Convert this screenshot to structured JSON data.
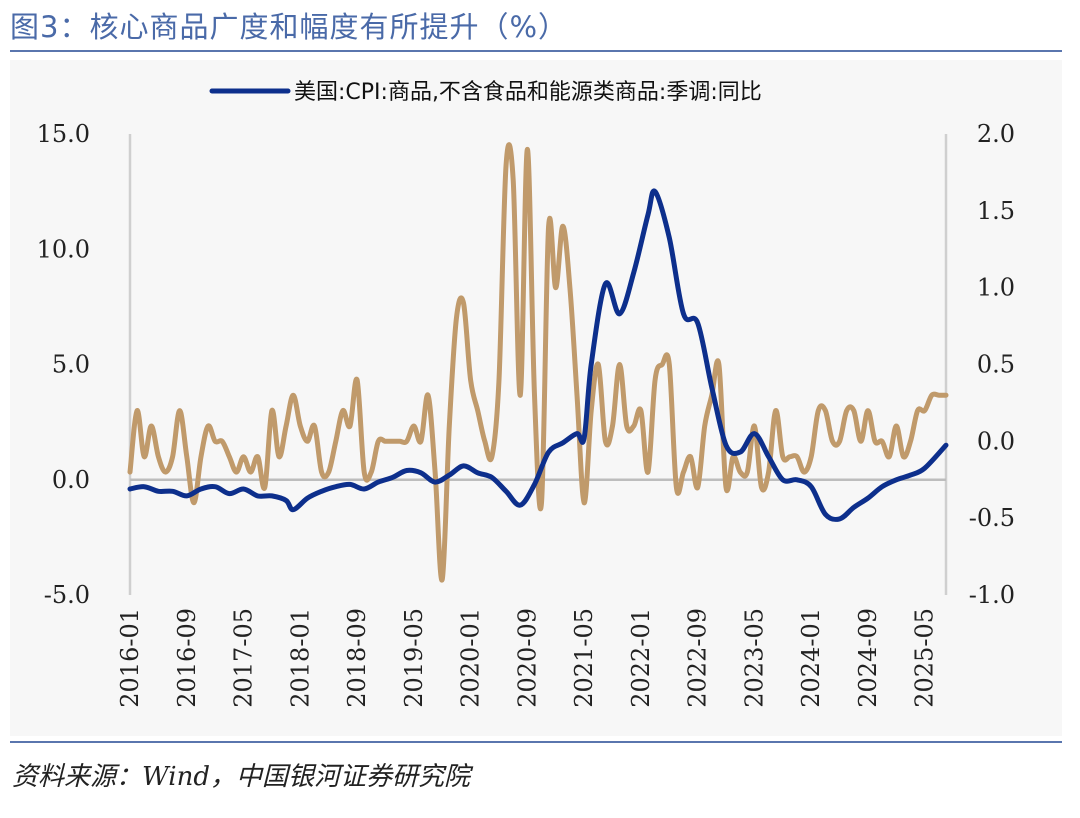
{
  "header": {
    "title": "图3：核心商品广度和幅度有所提升（%）"
  },
  "footer": {
    "source": "资料来源：Wind，中国银河证券研究院"
  },
  "colors": {
    "title": "#4a6aa8",
    "rule": "#5a76ae",
    "series_left": "#0d2f8c",
    "series_right": "#c09a6b",
    "zero_line": "#bdbdbd",
    "axis": "#cfcfcf"
  },
  "chart_data": {
    "type": "line",
    "title": "",
    "legend": {
      "placement": "top-center",
      "entries": [
        "美国:CPI:商品,不含食品和能源类商品:季调:同比"
      ]
    },
    "x_tick_labels": [
      "2016-01",
      "2016-09",
      "2017-05",
      "2018-01",
      "2018-09",
      "2019-05",
      "2020-01",
      "2020-09",
      "2021-05",
      "2022-01",
      "2022-09",
      "2023-05",
      "2024-01",
      "2024-09",
      "2025-05"
    ],
    "x_range": [
      "2016-01",
      "2025-08"
    ],
    "y_left": {
      "ylim": [
        -5.0,
        15.0
      ],
      "ticks": [
        "15.0",
        "10.0",
        "5.0",
        "0.0",
        "-5.0"
      ],
      "tick_values": [
        15,
        10,
        5,
        0,
        -5
      ]
    },
    "y_right": {
      "ylim": [
        -1.0,
        2.0
      ],
      "ticks": [
        "2.0",
        "1.5",
        "1.0",
        "0.5",
        "0.0",
        "-0.5",
        "-1.0"
      ],
      "tick_values": [
        2.0,
        1.5,
        1.0,
        0.5,
        0.0,
        -0.5,
        -1.0
      ]
    },
    "grid": false,
    "series": [
      {
        "name": "美国:CPI:商品,不含食品和能源类商品:季调:同比",
        "axis": "left",
        "color": "#0d2f8c",
        "points": [
          [
            "2016-01",
            -0.4
          ],
          [
            "2016-03",
            -0.3
          ],
          [
            "2016-05",
            -0.5
          ],
          [
            "2016-07",
            -0.5
          ],
          [
            "2016-09",
            -0.7
          ],
          [
            "2016-11",
            -0.4
          ],
          [
            "2017-01",
            -0.3
          ],
          [
            "2017-03",
            -0.6
          ],
          [
            "2017-05",
            -0.4
          ],
          [
            "2017-07",
            -0.7
          ],
          [
            "2017-09",
            -0.7
          ],
          [
            "2017-11",
            -0.9
          ],
          [
            "2017-12",
            -1.3
          ],
          [
            "2018-02",
            -0.8
          ],
          [
            "2018-04",
            -0.5
          ],
          [
            "2018-06",
            -0.3
          ],
          [
            "2018-08",
            -0.2
          ],
          [
            "2018-10",
            -0.4
          ],
          [
            "2018-12",
            -0.1
          ],
          [
            "2019-02",
            0.1
          ],
          [
            "2019-04",
            0.4
          ],
          [
            "2019-06",
            0.3
          ],
          [
            "2019-08",
            -0.1
          ],
          [
            "2019-10",
            0.2
          ],
          [
            "2019-12",
            0.6
          ],
          [
            "2020-02",
            0.3
          ],
          [
            "2020-04",
            0.1
          ],
          [
            "2020-06",
            -0.5
          ],
          [
            "2020-08",
            -1.1
          ],
          [
            "2020-10",
            -0.2
          ],
          [
            "2020-12",
            1.2
          ],
          [
            "2021-02",
            1.6
          ],
          [
            "2021-04",
            2.0
          ],
          [
            "2021-05",
            1.8
          ],
          [
            "2021-06",
            5.0
          ],
          [
            "2021-08",
            8.5
          ],
          [
            "2021-10",
            7.2
          ],
          [
            "2021-12",
            9.0
          ],
          [
            "2022-02",
            11.5
          ],
          [
            "2022-03",
            12.5
          ],
          [
            "2022-05",
            10.5
          ],
          [
            "2022-07",
            7.2
          ],
          [
            "2022-09",
            6.8
          ],
          [
            "2022-11",
            4.0
          ],
          [
            "2023-01",
            1.5
          ],
          [
            "2023-03",
            1.2
          ],
          [
            "2023-05",
            2.0
          ],
          [
            "2023-07",
            1.0
          ],
          [
            "2023-09",
            0.0
          ],
          [
            "2023-11",
            0.0
          ],
          [
            "2024-01",
            -0.3
          ],
          [
            "2024-03",
            -1.5
          ],
          [
            "2024-05",
            -1.7
          ],
          [
            "2024-07",
            -1.2
          ],
          [
            "2024-09",
            -0.8
          ],
          [
            "2024-11",
            -0.3
          ],
          [
            "2025-01",
            0.0
          ],
          [
            "2025-03",
            0.2
          ],
          [
            "2025-05",
            0.5
          ],
          [
            "2025-08",
            1.5
          ]
        ]
      },
      {
        "name": "",
        "axis": "right",
        "color": "#c09a6b",
        "points": [
          [
            "2016-01",
            -0.2
          ],
          [
            "2016-02",
            0.2
          ],
          [
            "2016-03",
            -0.1
          ],
          [
            "2016-04",
            0.1
          ],
          [
            "2016-05",
            -0.1
          ],
          [
            "2016-06",
            -0.2
          ],
          [
            "2016-07",
            -0.1
          ],
          [
            "2016-08",
            0.2
          ],
          [
            "2016-09",
            -0.1
          ],
          [
            "2016-10",
            -0.4
          ],
          [
            "2016-11",
            -0.1
          ],
          [
            "2016-12",
            0.1
          ],
          [
            "2017-01",
            0.0
          ],
          [
            "2017-02",
            0.0
          ],
          [
            "2017-03",
            -0.1
          ],
          [
            "2017-04",
            -0.2
          ],
          [
            "2017-05",
            -0.1
          ],
          [
            "2017-06",
            -0.2
          ],
          [
            "2017-07",
            -0.1
          ],
          [
            "2017-08",
            -0.3
          ],
          [
            "2017-09",
            0.2
          ],
          [
            "2017-10",
            -0.1
          ],
          [
            "2017-11",
            0.1
          ],
          [
            "2017-12",
            0.3
          ],
          [
            "2018-01",
            0.1
          ],
          [
            "2018-02",
            0.0
          ],
          [
            "2018-03",
            0.1
          ],
          [
            "2018-04",
            -0.2
          ],
          [
            "2018-05",
            -0.2
          ],
          [
            "2018-06",
            0.0
          ],
          [
            "2018-07",
            0.2
          ],
          [
            "2018-08",
            0.1
          ],
          [
            "2018-09",
            0.4
          ],
          [
            "2018-10",
            -0.2
          ],
          [
            "2018-11",
            -0.2
          ],
          [
            "2018-12",
            0.0
          ],
          [
            "2019-01",
            0.0
          ],
          [
            "2019-02",
            0.0
          ],
          [
            "2019-03",
            0.0
          ],
          [
            "2019-04",
            0.0
          ],
          [
            "2019-05",
            0.1
          ],
          [
            "2019-06",
            0.0
          ],
          [
            "2019-07",
            0.3
          ],
          [
            "2019-08",
            -0.2
          ],
          [
            "2019-09",
            -0.9
          ],
          [
            "2019-10",
            0.1
          ],
          [
            "2019-11",
            0.8
          ],
          [
            "2019-12",
            0.9
          ],
          [
            "2020-01",
            0.4
          ],
          [
            "2020-02",
            0.2
          ],
          [
            "2020-03",
            0.0
          ],
          [
            "2020-04",
            -0.1
          ],
          [
            "2020-05",
            0.4
          ],
          [
            "2020-06",
            1.8
          ],
          [
            "2020-07",
            1.7
          ],
          [
            "2020-08",
            0.3
          ],
          [
            "2020-09",
            1.9
          ],
          [
            "2020-10",
            0.3
          ],
          [
            "2020-11",
            -0.4
          ],
          [
            "2020-12",
            1.4
          ],
          [
            "2021-01",
            1.0
          ],
          [
            "2021-02",
            1.4
          ],
          [
            "2021-03",
            1.0
          ],
          [
            "2021-04",
            0.3
          ],
          [
            "2021-05",
            -0.4
          ],
          [
            "2021-06",
            0.2
          ],
          [
            "2021-07",
            0.5
          ],
          [
            "2021-08",
            0.0
          ],
          [
            "2021-09",
            0.1
          ],
          [
            "2021-10",
            0.5
          ],
          [
            "2021-11",
            0.1
          ],
          [
            "2021-12",
            0.1
          ],
          [
            "2022-01",
            0.2
          ],
          [
            "2022-02",
            -0.2
          ],
          [
            "2022-03",
            0.4
          ],
          [
            "2022-04",
            0.5
          ],
          [
            "2022-05",
            0.5
          ],
          [
            "2022-06",
            -0.3
          ],
          [
            "2022-07",
            -0.2
          ],
          [
            "2022-08",
            -0.1
          ],
          [
            "2022-09",
            -0.3
          ],
          [
            "2022-10",
            0.1
          ],
          [
            "2022-11",
            0.3
          ],
          [
            "2022-12",
            0.5
          ],
          [
            "2023-01",
            -0.3
          ],
          [
            "2023-02",
            -0.1
          ],
          [
            "2023-03",
            -0.2
          ],
          [
            "2023-04",
            -0.2
          ],
          [
            "2023-05",
            0.1
          ],
          [
            "2023-06",
            -0.3
          ],
          [
            "2023-07",
            -0.2
          ],
          [
            "2023-08",
            0.2
          ],
          [
            "2023-09",
            -0.1
          ],
          [
            "2023-10",
            -0.1
          ],
          [
            "2023-11",
            -0.1
          ],
          [
            "2023-12",
            -0.2
          ],
          [
            "2024-01",
            -0.1
          ],
          [
            "2024-02",
            0.2
          ],
          [
            "2024-03",
            0.2
          ],
          [
            "2024-04",
            0.0
          ],
          [
            "2024-05",
            0.0
          ],
          [
            "2024-06",
            0.2
          ],
          [
            "2024-07",
            0.2
          ],
          [
            "2024-08",
            0.0
          ],
          [
            "2024-09",
            0.2
          ],
          [
            "2024-10",
            0.0
          ],
          [
            "2024-11",
            0.0
          ],
          [
            "2024-12",
            -0.1
          ],
          [
            "2025-01",
            0.1
          ],
          [
            "2025-02",
            -0.1
          ],
          [
            "2025-03",
            0.0
          ],
          [
            "2025-04",
            0.2
          ],
          [
            "2025-05",
            0.2
          ],
          [
            "2025-06",
            0.3
          ],
          [
            "2025-07",
            0.3
          ],
          [
            "2025-08",
            0.3
          ]
        ]
      }
    ]
  }
}
